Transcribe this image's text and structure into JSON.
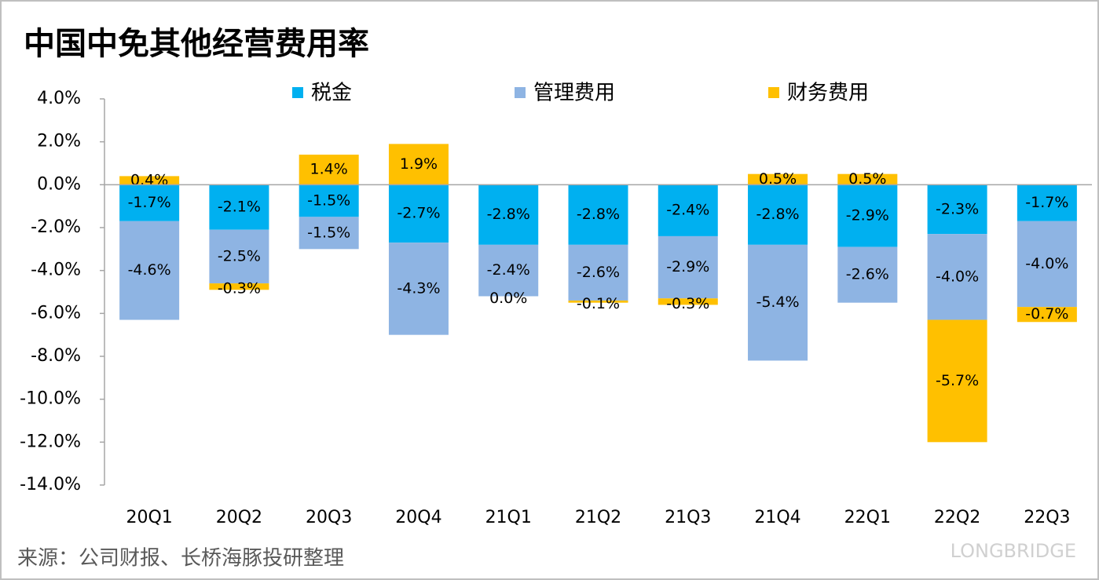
{
  "chart_data": {
    "type": "stacked_bar",
    "title": "中国中免其他经营费用率",
    "source": "来源：公司财报、长桥海豚投研整理",
    "watermark": "LONGBRIDGE",
    "categories": [
      "20Q1",
      "20Q2",
      "20Q3",
      "20Q4",
      "21Q1",
      "21Q2",
      "21Q3",
      "21Q4",
      "22Q1",
      "22Q2",
      "22Q3"
    ],
    "series": [
      {
        "name": "税金",
        "color": "#00b0f0",
        "values": [
          -1.7,
          -2.1,
          -1.5,
          -2.7,
          -2.8,
          -2.8,
          -2.4,
          -2.8,
          -2.9,
          -2.3,
          -1.7
        ],
        "value_labels": [
          "-1.7%",
          "-2.1%",
          "-1.5%",
          "-2.7%",
          "-2.8%",
          "-2.8%",
          "-2.4%",
          "-2.8%",
          "-2.9%",
          "-2.3%",
          "-1.7%"
        ]
      },
      {
        "name": "管理费用",
        "color": "#8eb4e3",
        "values": [
          -4.6,
          -2.5,
          -1.5,
          -4.3,
          -2.4,
          -2.6,
          -2.9,
          -5.4,
          -2.6,
          -4.0,
          -4.0
        ],
        "value_labels": [
          "-4.6%",
          "-2.5%",
          "-1.5%",
          "-4.3%",
          "-2.4%",
          "-2.6%",
          "-2.9%",
          "-5.4%",
          "-2.6%",
          "-4.0%",
          "-4.0%"
        ]
      },
      {
        "name": "财务费用",
        "color": "#ffc000",
        "values": [
          0.4,
          -0.3,
          1.4,
          1.9,
          0.0,
          -0.1,
          -0.3,
          0.5,
          0.5,
          -5.7,
          -0.7
        ],
        "value_labels": [
          "0.4%",
          "-0.3%",
          "1.4%",
          "1.9%",
          "0.0%",
          "-0.1%",
          "-0.3%",
          "0.5%",
          "0.5%",
          "-5.7%",
          "-0.7%"
        ]
      }
    ],
    "ylim": [
      -14,
      4
    ],
    "yticks": [
      {
        "value": 4,
        "label": "4.0%"
      },
      {
        "value": 2,
        "label": "2.0%"
      },
      {
        "value": 0,
        "label": "0.0%"
      },
      {
        "value": -2,
        "label": "-2.0%"
      },
      {
        "value": -4,
        "label": "-4.0%"
      },
      {
        "value": -6,
        "label": "-6.0%"
      },
      {
        "value": -8,
        "label": "-8.0%"
      },
      {
        "value": -10,
        "label": "-10.0%"
      },
      {
        "value": -12,
        "label": "-12.0%"
      },
      {
        "value": -14,
        "label": "-14.0%"
      }
    ],
    "grid": false
  }
}
